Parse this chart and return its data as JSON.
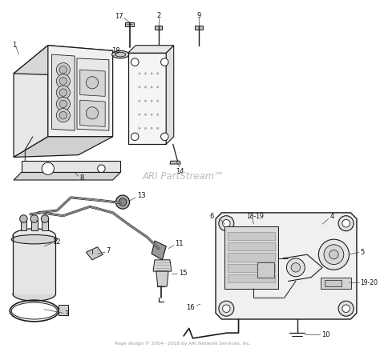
{
  "background_color": "#ffffff",
  "line_color": "#1a1a1a",
  "watermark_text": "ARI PartStream™",
  "watermark_color": "#bbbbbb",
  "watermark_fontsize": 8.5,
  "copyright_text": "Page design © 2004 - 2016 by ARI Network Services, Inc.",
  "copyright_color": "#999999",
  "copyright_fontsize": 4.2,
  "figsize": [
    4.74,
    4.5
  ],
  "dpi": 100
}
